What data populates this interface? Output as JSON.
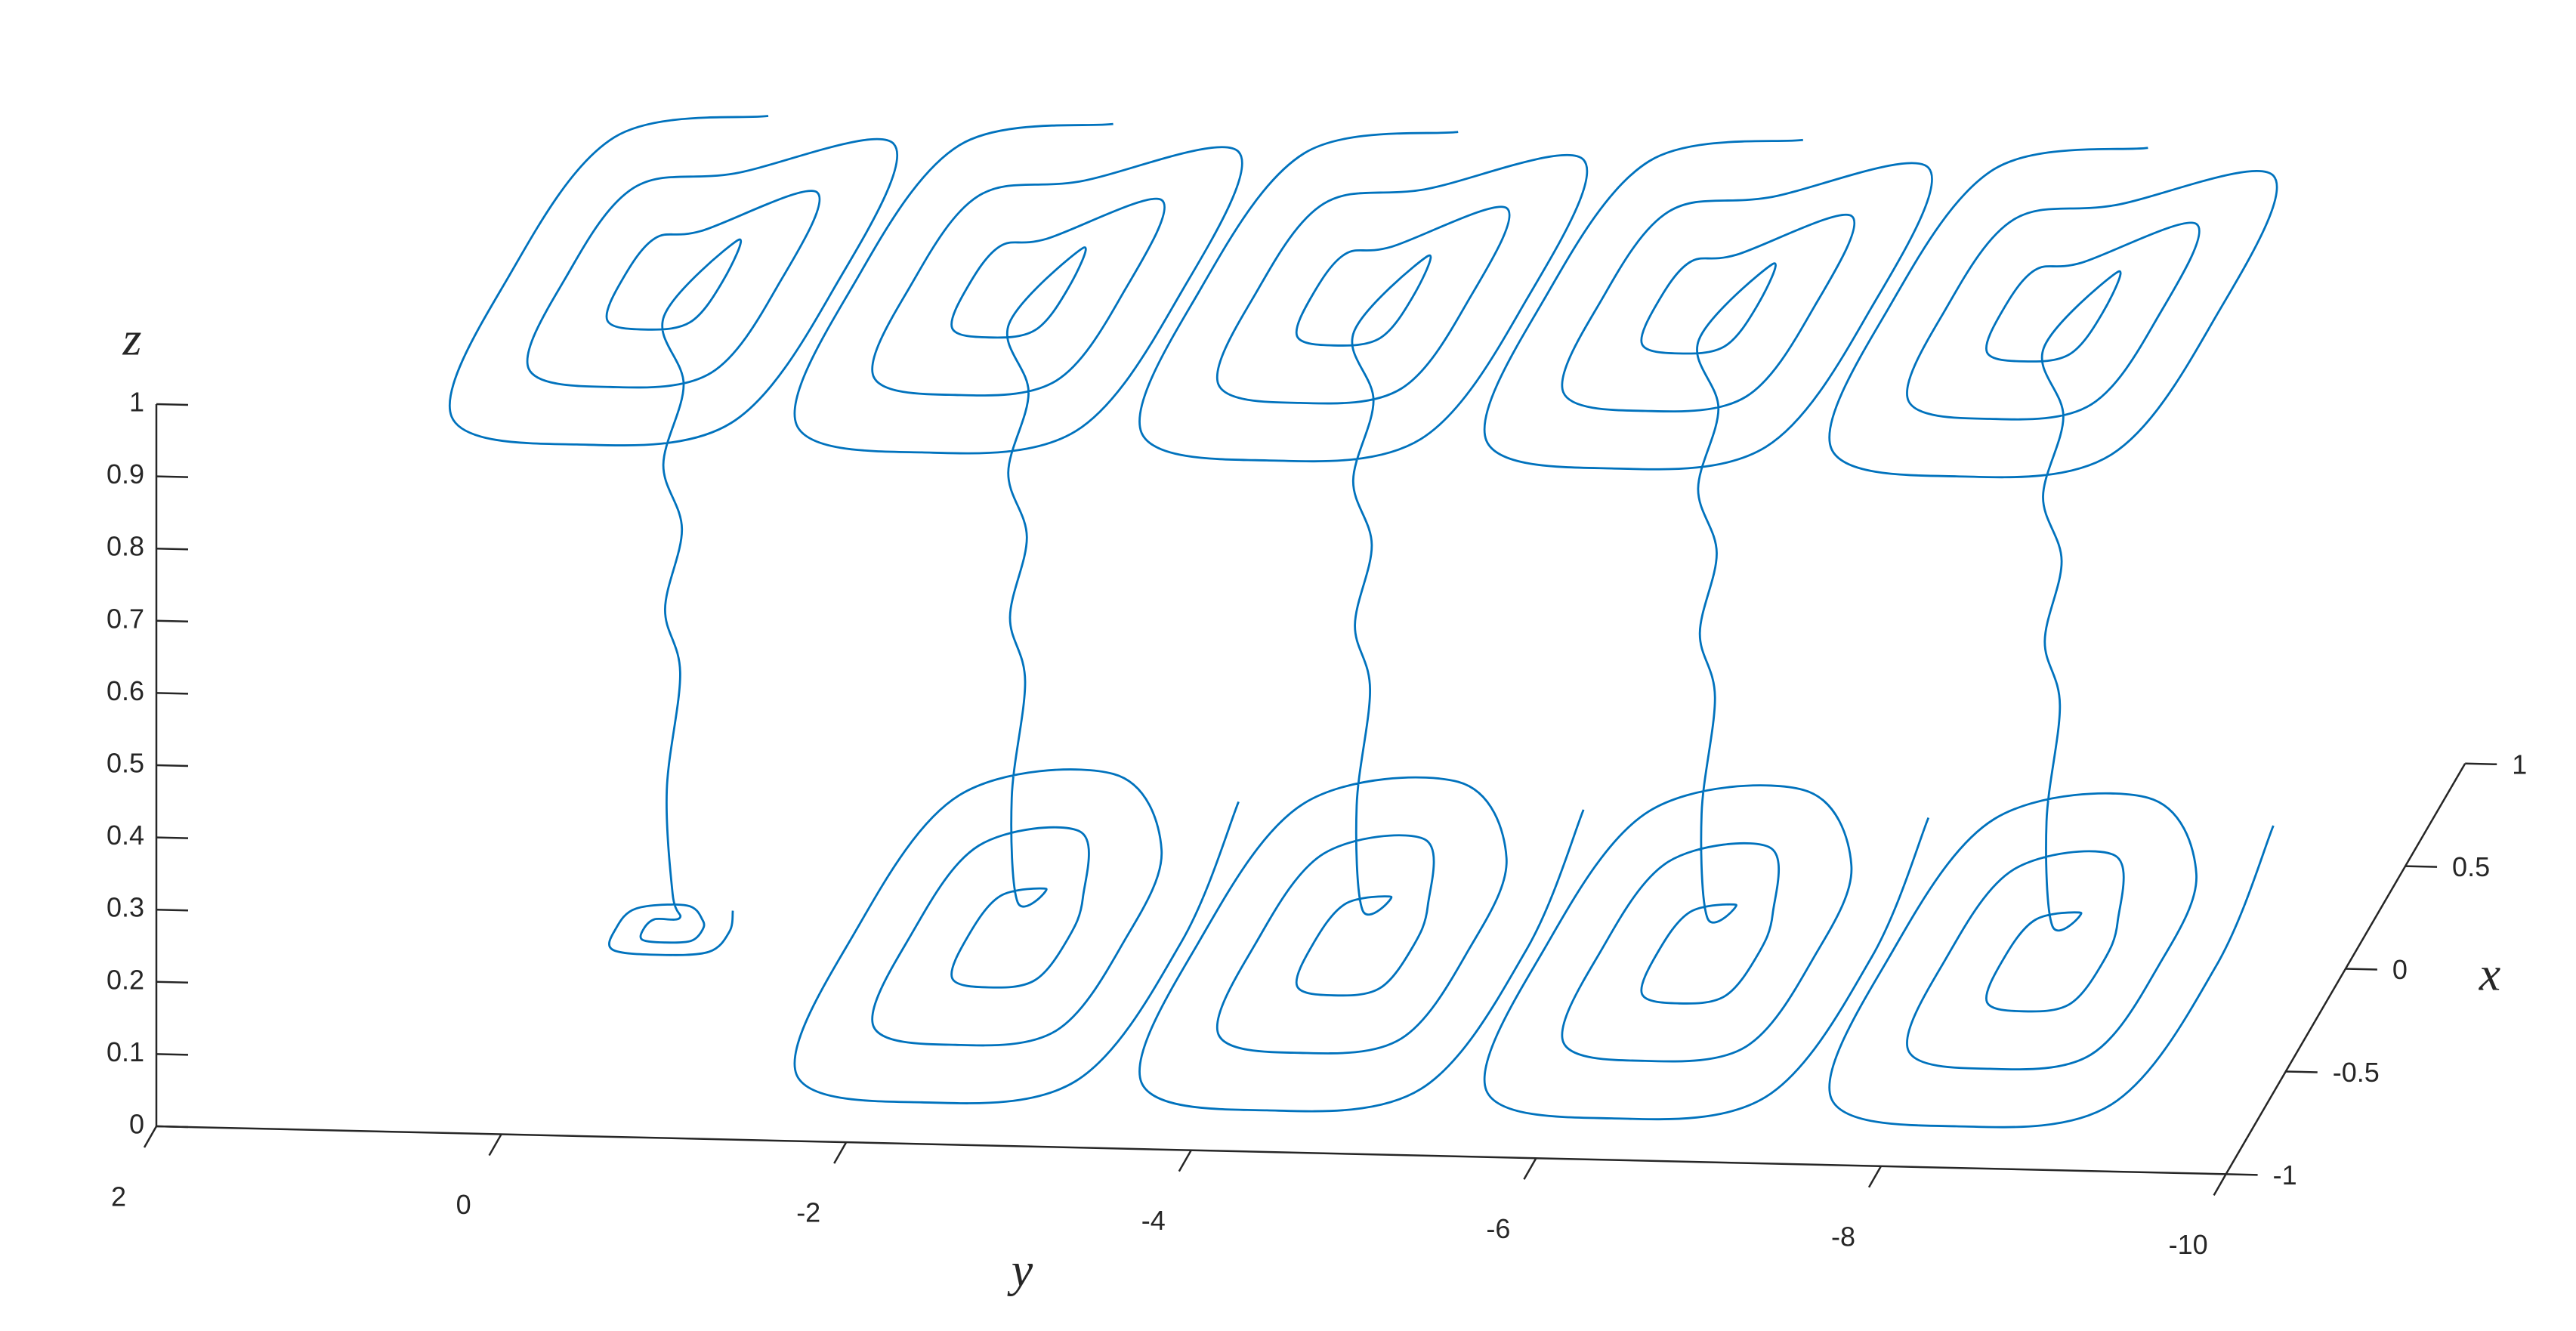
{
  "chart_data": {
    "type": "line",
    "color": "#0072bd",
    "xlabel": "x",
    "ylabel": "y",
    "zlabel": "z",
    "xlim": [
      -1,
      1
    ],
    "ylim": [
      -10,
      2
    ],
    "zlim": [
      0,
      1
    ],
    "xticks": [
      -1,
      -0.5,
      0,
      0.5,
      1
    ],
    "yticks": [
      2,
      0,
      -2,
      -4,
      -6,
      -8,
      -10
    ],
    "zticks": [
      0,
      0.1,
      0.2,
      0.3,
      0.4,
      0.5,
      0.6,
      0.7,
      0.8,
      0.9,
      1
    ],
    "series": [
      {
        "x": [
          0.8,
          0.68,
          0,
          -0.68,
          -0.8,
          -0.68,
          0,
          0.68,
          0.52,
          0.44,
          0,
          -0.44,
          -0.52,
          -0.44,
          0,
          0.44,
          0.24,
          0.2,
          0,
          -0.2,
          -0.24,
          -0.2,
          0,
          0.2,
          0,
          0.02,
          -0.02,
          0.02,
          -0.02,
          0.02,
          -0.02,
          0,
          0.06,
          0.05,
          0,
          -0.05,
          -0.06,
          -0.05,
          0,
          0.05,
          0.12,
          0.1,
          0,
          -0.1,
          -0.12,
          -0.1,
          0,
          0.1
        ],
        "y": [
          -0.3,
          0.51,
          0.65,
          0.51,
          -0.3,
          -1.11,
          -1.25,
          -1.11,
          -0.3,
          0.23,
          0.32,
          0.23,
          -0.3,
          -0.83,
          -0.92,
          -0.83,
          -0.3,
          -0.06,
          -0.01,
          -0.06,
          -0.3,
          -0.54,
          -0.59,
          -0.54,
          -0.25,
          -0.35,
          -0.26,
          -0.34,
          -0.27,
          -0.33,
          -0.28,
          -0.3,
          -0.3,
          -0.16,
          -0.13,
          -0.16,
          -0.3,
          -0.44,
          -0.47,
          -0.44,
          -0.3,
          -0.02,
          0.03,
          -0.02,
          -0.3,
          -0.58,
          -0.63,
          -0.58
        ],
        "z": [
          0.9,
          0.9,
          0.9,
          0.9,
          0.9,
          0.9,
          0.9,
          0.9,
          0.9,
          0.9,
          0.9,
          0.9,
          0.9,
          0.9,
          0.9,
          0.9,
          0.9,
          0.9,
          0.9,
          0.9,
          0.9,
          0.9,
          0.9,
          0.9,
          0.85,
          0.75,
          0.65,
          0.55,
          0.45,
          0.35,
          0.2,
          0.05,
          0,
          0,
          0,
          0,
          0,
          0,
          0,
          0,
          0,
          0,
          0,
          0,
          0,
          0,
          0,
          0
        ]
      },
      {
        "x": [
          0.8,
          0.68,
          0,
          -0.68,
          -0.8,
          -0.68,
          0,
          0.68,
          0.52,
          0.44,
          0,
          -0.44,
          -0.52,
          -0.44,
          0,
          0.44,
          0.24,
          0.2,
          0,
          -0.2,
          -0.24,
          -0.2,
          0,
          0.2,
          0,
          0.02,
          -0.02,
          0.02,
          -0.02,
          0.02,
          -0.02,
          0,
          0.24,
          0.2,
          0,
          -0.2,
          -0.24,
          -0.2,
          0,
          0.2,
          0.52,
          0.44,
          0,
          -0.44,
          -0.52,
          -0.44,
          0,
          0.44,
          0.8,
          0.68,
          0,
          -0.68,
          -0.8,
          -0.68,
          0,
          0.68
        ],
        "y": [
          -2.3,
          -1.49,
          -1.35,
          -1.49,
          -2.3,
          -3.11,
          -3.25,
          -3.11,
          -2.3,
          -1.77,
          -1.68,
          -1.77,
          -2.3,
          -2.83,
          -2.92,
          -2.83,
          -2.3,
          -2.06,
          -2.01,
          -2.06,
          -2.3,
          -2.54,
          -2.59,
          -2.54,
          -2.25,
          -2.35,
          -2.26,
          -2.34,
          -2.27,
          -2.33,
          -2.28,
          -2.3,
          -2.3,
          -2.06,
          -2.01,
          -2.06,
          -2.3,
          -2.54,
          -2.59,
          -2.54,
          -2.3,
          -1.77,
          -1.68,
          -1.77,
          -2.3,
          -2.83,
          -2.92,
          -2.83,
          -2.3,
          -1.49,
          -1.35,
          -1.49,
          -2.3,
          -3.11,
          -3.25,
          -3.11
        ],
        "z": [
          0.9,
          0.9,
          0.9,
          0.9,
          0.9,
          0.9,
          0.9,
          0.9,
          0.9,
          0.9,
          0.9,
          0.9,
          0.9,
          0.9,
          0.9,
          0.9,
          0.9,
          0.9,
          0.9,
          0.9,
          0.9,
          0.9,
          0.9,
          0.9,
          0.85,
          0.75,
          0.65,
          0.55,
          0.45,
          0.35,
          0.2,
          0.05,
          0,
          0,
          0,
          0,
          0,
          0,
          0,
          0,
          0,
          0,
          0,
          0,
          0,
          0,
          0,
          0,
          0,
          0,
          0,
          0,
          0,
          0,
          0,
          0
        ]
      },
      {
        "x": [
          0.8,
          0.68,
          0,
          -0.68,
          -0.8,
          -0.68,
          0,
          0.68,
          0.52,
          0.44,
          0,
          -0.44,
          -0.52,
          -0.44,
          0,
          0.44,
          0.24,
          0.2,
          0,
          -0.2,
          -0.24,
          -0.2,
          0,
          0.2,
          0,
          0.02,
          -0.02,
          0.02,
          -0.02,
          0.02,
          -0.02,
          0,
          0.24,
          0.2,
          0,
          -0.2,
          -0.24,
          -0.2,
          0,
          0.2,
          0.52,
          0.44,
          0,
          -0.44,
          -0.52,
          -0.44,
          0,
          0.44,
          0.8,
          0.68,
          0,
          -0.68,
          -0.8,
          -0.68,
          0,
          0.68
        ],
        "y": [
          -4.3,
          -3.49,
          -3.35,
          -3.49,
          -4.3,
          -5.11,
          -5.25,
          -5.11,
          -4.3,
          -3.77,
          -3.68,
          -3.77,
          -4.3,
          -4.83,
          -4.92,
          -4.83,
          -4.3,
          -4.06,
          -4.01,
          -4.06,
          -4.3,
          -4.54,
          -4.59,
          -4.54,
          -4.25,
          -4.35,
          -4.26,
          -4.34,
          -4.27,
          -4.33,
          -4.28,
          -4.3,
          -4.3,
          -4.06,
          -4.01,
          -4.06,
          -4.3,
          -4.54,
          -4.59,
          -4.54,
          -4.3,
          -3.77,
          -3.68,
          -3.77,
          -4.3,
          -4.83,
          -4.92,
          -4.83,
          -4.3,
          -3.49,
          -3.35,
          -3.49,
          -4.3,
          -5.11,
          -5.25,
          -5.11
        ],
        "z": [
          0.9,
          0.9,
          0.9,
          0.9,
          0.9,
          0.9,
          0.9,
          0.9,
          0.9,
          0.9,
          0.9,
          0.9,
          0.9,
          0.9,
          0.9,
          0.9,
          0.9,
          0.9,
          0.9,
          0.9,
          0.9,
          0.9,
          0.9,
          0.9,
          0.85,
          0.75,
          0.65,
          0.55,
          0.45,
          0.35,
          0.2,
          0.05,
          0,
          0,
          0,
          0,
          0,
          0,
          0,
          0,
          0,
          0,
          0,
          0,
          0,
          0,
          0,
          0,
          0,
          0,
          0,
          0,
          0,
          0,
          0,
          0
        ]
      },
      {
        "x": [
          0.8,
          0.68,
          0,
          -0.68,
          -0.8,
          -0.68,
          0,
          0.68,
          0.52,
          0.44,
          0,
          -0.44,
          -0.52,
          -0.44,
          0,
          0.44,
          0.24,
          0.2,
          0,
          -0.2,
          -0.24,
          -0.2,
          0,
          0.2,
          0,
          0.02,
          -0.02,
          0.02,
          -0.02,
          0.02,
          -0.02,
          0,
          0.24,
          0.2,
          0,
          -0.2,
          -0.24,
          -0.2,
          0,
          0.2,
          0.52,
          0.44,
          0,
          -0.44,
          -0.52,
          -0.44,
          0,
          0.44,
          0.8,
          0.68,
          0,
          -0.68,
          -0.8,
          -0.68,
          0,
          0.68
        ],
        "y": [
          -6.3,
          -5.49,
          -5.35,
          -5.49,
          -6.3,
          -7.11,
          -7.25,
          -7.11,
          -6.3,
          -5.77,
          -5.68,
          -5.77,
          -6.3,
          -6.83,
          -6.92,
          -6.83,
          -6.3,
          -6.06,
          -6.01,
          -6.06,
          -6.3,
          -6.54,
          -6.59,
          -6.54,
          -6.25,
          -6.35,
          -6.26,
          -6.34,
          -6.27,
          -6.33,
          -6.28,
          -6.3,
          -6.3,
          -6.06,
          -6.01,
          -6.06,
          -6.3,
          -6.54,
          -6.59,
          -6.54,
          -6.3,
          -5.77,
          -5.68,
          -5.77,
          -6.3,
          -6.83,
          -6.92,
          -6.83,
          -6.3,
          -5.49,
          -5.35,
          -5.49,
          -6.3,
          -7.11,
          -7.25,
          -7.11
        ],
        "z": [
          0.9,
          0.9,
          0.9,
          0.9,
          0.9,
          0.9,
          0.9,
          0.9,
          0.9,
          0.9,
          0.9,
          0.9,
          0.9,
          0.9,
          0.9,
          0.9,
          0.9,
          0.9,
          0.9,
          0.9,
          0.9,
          0.9,
          0.9,
          0.9,
          0.85,
          0.75,
          0.65,
          0.55,
          0.45,
          0.35,
          0.2,
          0.05,
          0,
          0,
          0,
          0,
          0,
          0,
          0,
          0,
          0,
          0,
          0,
          0,
          0,
          0,
          0,
          0,
          0,
          0,
          0,
          0,
          0,
          0,
          0,
          0
        ]
      },
      {
        "x": [
          0.8,
          0.68,
          0,
          -0.68,
          -0.8,
          -0.68,
          0,
          0.68,
          0.52,
          0.44,
          0,
          -0.44,
          -0.52,
          -0.44,
          0,
          0.44,
          0.24,
          0.2,
          0,
          -0.2,
          -0.24,
          -0.2,
          0,
          0.2,
          0,
          0.02,
          -0.02,
          0.02,
          -0.02,
          0.02,
          -0.02,
          0,
          0.24,
          0.2,
          0,
          -0.2,
          -0.24,
          -0.2,
          0,
          0.2,
          0.52,
          0.44,
          0,
          -0.44,
          -0.52,
          -0.44,
          0,
          0.44,
          0.8,
          0.68,
          0,
          -0.68,
          -0.8,
          -0.68,
          0,
          0.68
        ],
        "y": [
          -8.3,
          -7.49,
          -7.35,
          -7.49,
          -8.3,
          -9.11,
          -9.25,
          -9.11,
          -8.3,
          -7.77,
          -7.68,
          -7.77,
          -8.3,
          -8.83,
          -8.92,
          -8.83,
          -8.3,
          -8.06,
          -8.01,
          -8.06,
          -8.3,
          -8.54,
          -8.59,
          -8.54,
          -8.25,
          -8.35,
          -8.26,
          -8.34,
          -8.27,
          -8.33,
          -8.28,
          -8.3,
          -8.3,
          -8.06,
          -8.01,
          -8.06,
          -8.3,
          -8.54,
          -8.59,
          -8.54,
          -8.3,
          -7.77,
          -7.68,
          -7.77,
          -8.3,
          -8.83,
          -8.92,
          -8.83,
          -8.3,
          -7.49,
          -7.35,
          -7.49,
          -8.3,
          -9.11,
          -9.25,
          -9.11
        ],
        "z": [
          0.9,
          0.9,
          0.9,
          0.9,
          0.9,
          0.9,
          0.9,
          0.9,
          0.9,
          0.9,
          0.9,
          0.9,
          0.9,
          0.9,
          0.9,
          0.9,
          0.9,
          0.9,
          0.9,
          0.9,
          0.9,
          0.9,
          0.9,
          0.9,
          0.85,
          0.75,
          0.65,
          0.55,
          0.45,
          0.35,
          0.2,
          0.05,
          0,
          0,
          0,
          0,
          0,
          0,
          0,
          0,
          0,
          0,
          0,
          0,
          0,
          0,
          0,
          0,
          0,
          0,
          0,
          0,
          0,
          0,
          0,
          0
        ]
      }
    ]
  }
}
